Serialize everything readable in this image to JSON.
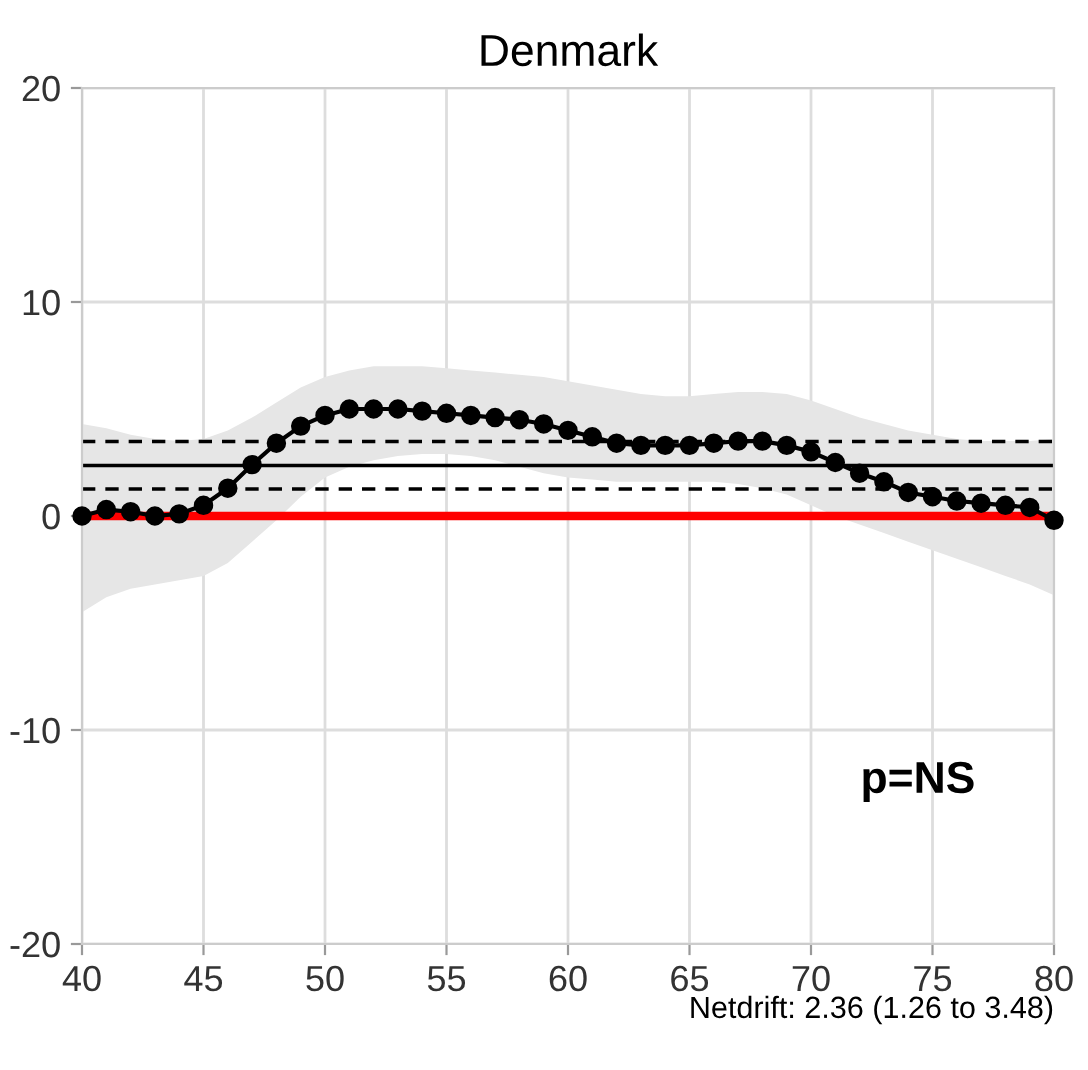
{
  "chart_data": {
    "type": "line",
    "title": "Denmark",
    "x": [
      40,
      41,
      42,
      43,
      44,
      45,
      46,
      47,
      48,
      49,
      50,
      51,
      52,
      53,
      54,
      55,
      56,
      57,
      58,
      59,
      60,
      61,
      62,
      63,
      64,
      65,
      66,
      67,
      68,
      69,
      70,
      71,
      72,
      73,
      74,
      75,
      76,
      77,
      78,
      79,
      80
    ],
    "series": [
      {
        "color": "#000000",
        "values": [
          0,
          0.3,
          0.2,
          0,
          0.1,
          0.5,
          1.3,
          2.4,
          3.4,
          4.2,
          4.7,
          5.0,
          5.0,
          5.0,
          4.9,
          4.8,
          4.7,
          4.6,
          4.5,
          4.3,
          4.0,
          3.7,
          3.4,
          3.3,
          3.3,
          3.3,
          3.4,
          3.5,
          3.5,
          3.3,
          3.0,
          2.5,
          2.0,
          1.6,
          1.1,
          0.9,
          0.7,
          0.6,
          0.5,
          0.4,
          -0.2
        ],
        "lower": [
          -4.5,
          -3.8,
          -3.4,
          -3.2,
          -3.0,
          -2.8,
          -2.2,
          -1.2,
          -0.2,
          0.9,
          1.8,
          2.3,
          2.6,
          2.8,
          2.9,
          2.9,
          2.8,
          2.6,
          2.3,
          2.0,
          1.8,
          1.7,
          1.6,
          1.6,
          1.6,
          1.6,
          1.6,
          1.5,
          1.3,
          1.0,
          0.5,
          0.0,
          -0.4,
          -0.8,
          -1.2,
          -1.6,
          -2.0,
          -2.4,
          -2.8,
          -3.2,
          -3.7
        ],
        "upper": [
          4.3,
          4.1,
          3.8,
          3.6,
          3.5,
          3.6,
          4.0,
          4.6,
          5.3,
          6.0,
          6.5,
          6.8,
          7.0,
          7.0,
          7.0,
          6.9,
          6.8,
          6.7,
          6.6,
          6.5,
          6.3,
          6.1,
          5.9,
          5.7,
          5.6,
          5.6,
          5.7,
          5.8,
          5.8,
          5.7,
          5.4,
          5.0,
          4.6,
          4.3,
          4.0,
          3.8,
          3.6,
          3.5,
          3.5,
          3.5,
          3.6
        ]
      }
    ],
    "marker": "circle",
    "line_style": "solid",
    "ref_lines": [
      {
        "axis": "y",
        "value": 0,
        "color": "#ff0000",
        "line_style": "solid"
      },
      {
        "axis": "y",
        "value": 2.36,
        "color": "#000000",
        "line_style": "solid"
      },
      {
        "axis": "y",
        "value": 1.26,
        "color": "#000000",
        "line_style": "dashed"
      },
      {
        "axis": "y",
        "value": 3.48,
        "color": "#000000",
        "line_style": "dashed"
      }
    ],
    "xlim": [
      40,
      80
    ],
    "xticks": [
      40,
      45,
      50,
      55,
      60,
      65,
      70,
      75,
      80
    ],
    "ylim": [
      -20,
      20
    ],
    "yticks": [
      {
        "value": -20,
        "label": "-20"
      },
      {
        "value": -10,
        "label": "-10"
      },
      0,
      10,
      20
    ],
    "grid": true,
    "annotations": [
      "p=NS",
      "Netdrift: 2.36 (1.26 to 3.48)"
    ]
  }
}
